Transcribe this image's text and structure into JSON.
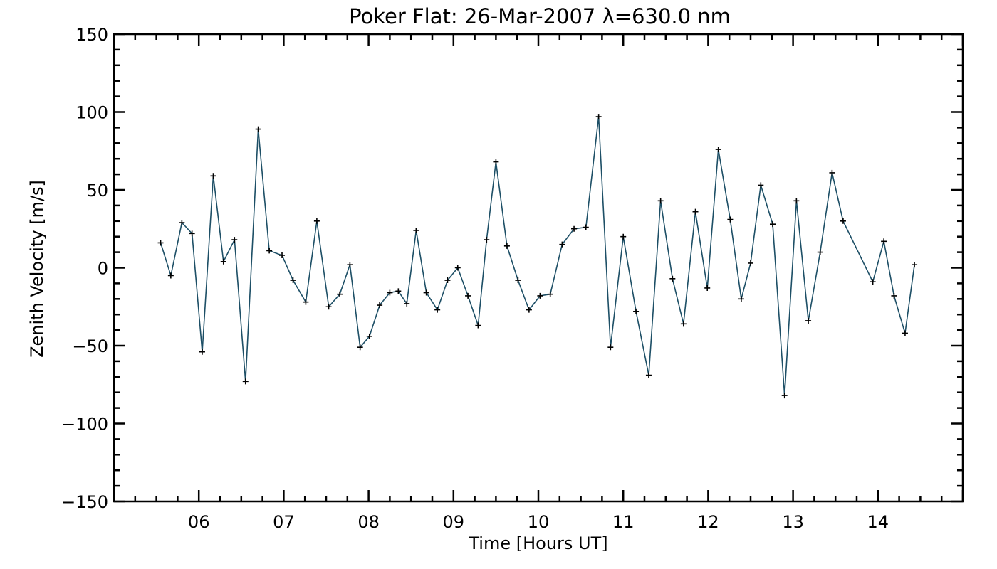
{
  "chart_data": {
    "type": "line",
    "title": "Poker Flat: 26-Mar-2007 λ=630.0 nm",
    "xlabel": "Time [Hours UT]",
    "ylabel": "Zenith Velocity [m/s]",
    "xlim": [
      5.0,
      15.0
    ],
    "ylim": [
      -150,
      150
    ],
    "x_ticks": [
      6,
      7,
      8,
      9,
      10,
      11,
      12,
      13,
      14
    ],
    "x_tick_labels": [
      "06",
      "07",
      "08",
      "09",
      "10",
      "11",
      "12",
      "13",
      "14"
    ],
    "y_ticks": [
      -150,
      -100,
      -50,
      0,
      50,
      100,
      150
    ],
    "y_tick_labels": [
      "−150",
      "−100",
      "−50",
      "0",
      "50",
      "100",
      "150"
    ],
    "line_color": "#1d4f66",
    "marker": "+",
    "grid": false,
    "series": [
      {
        "name": "Zenith Velocity",
        "x": [
          5.55,
          5.67,
          5.8,
          5.92,
          6.04,
          6.17,
          6.29,
          6.42,
          6.55,
          6.7,
          6.83,
          6.98,
          7.11,
          7.26,
          7.39,
          7.53,
          7.66,
          7.78,
          7.9,
          8.01,
          8.13,
          8.25,
          8.35,
          8.45,
          8.56,
          8.68,
          8.81,
          8.93,
          9.05,
          9.17,
          9.29,
          9.39,
          9.5,
          9.63,
          9.76,
          9.89,
          10.02,
          10.14,
          10.28,
          10.42,
          10.56,
          10.71,
          10.85,
          11.0,
          11.15,
          11.3,
          11.44,
          11.58,
          11.71,
          11.85,
          11.99,
          12.12,
          12.26,
          12.39,
          12.5,
          12.62,
          12.76,
          12.9,
          13.04,
          13.18,
          13.32,
          13.46,
          13.59,
          13.94,
          14.07,
          14.19,
          14.32,
          14.43
        ],
        "y": [
          16,
          -5,
          29,
          22,
          -54,
          59,
          4,
          18,
          -73,
          89,
          11,
          8,
          -8,
          -22,
          30,
          -25,
          -17,
          2,
          -51,
          -44,
          -24,
          -16,
          -15,
          -23,
          24,
          -16,
          -27,
          -8,
          0,
          -18,
          -37,
          18,
          68,
          14,
          -8,
          -27,
          -18,
          -17,
          15,
          25,
          26,
          97,
          -51,
          20,
          -28,
          -69,
          43,
          -7,
          -36,
          36,
          -13,
          76,
          31,
          -20,
          3,
          53,
          28,
          -82,
          43,
          -34,
          10,
          61,
          30,
          -9,
          17,
          -18,
          -42,
          2
        ]
      }
    ]
  }
}
